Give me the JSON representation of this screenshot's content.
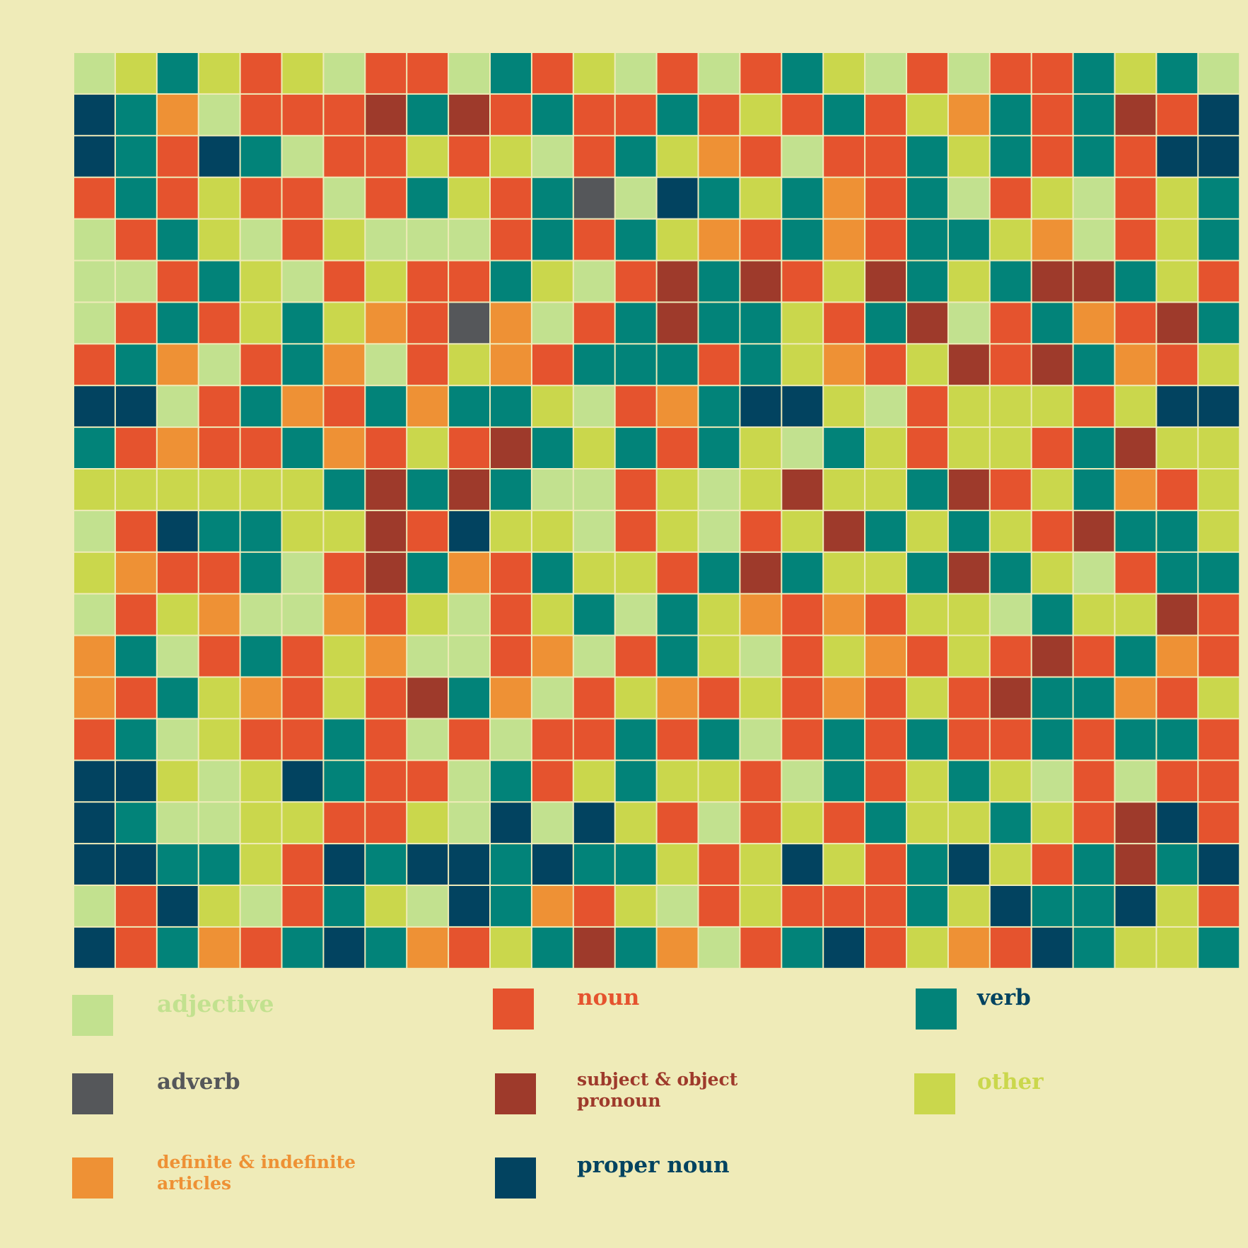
{
  "chart_data": {
    "type": "heatmap",
    "title": "",
    "background": "#efebb8",
    "grid_line_color": "#efebb8",
    "categories": [
      {
        "code": "A",
        "name": "adjective",
        "color": "#c2e18f"
      },
      {
        "code": "N",
        "name": "noun",
        "color": "#e5532e"
      },
      {
        "code": "V",
        "name": "verb",
        "color": "#028379"
      },
      {
        "code": "D",
        "name": "adverb",
        "color": "#55575a"
      },
      {
        "code": "S",
        "name": "subject & object\npronoun",
        "color": "#9e3a2b"
      },
      {
        "code": "O",
        "name": "other",
        "color": "#cad74c"
      },
      {
        "code": "R",
        "name": "definite & indefinite\narticles",
        "color": "#ee9135"
      },
      {
        "code": "P",
        "name": "proper noun",
        "color": "#024360"
      }
    ],
    "rows": [
      "AOVONOANNAVNOANANVOANANNVOVA",
      "PVRANNNSVSNVNNVNONVNORVNVSNP",
      "PVNPVANNONOANVORNANNVOVNVNPP",
      "NVNONNANVONVDAPVOVRNVANOANOV",
      "ANVOANOAAANVNVORNVRNVVORANOV",
      "AANVOANONNVOANSVSNOSVOVSSVON",
      "ANVNOVORNDRANVSVVONVSANVRNSV",
      "NVRANVRANORNVVVNVORNOSNSVRNO",
      "PPANVRNVRVVOANRVPPOANOOONOPP",
      "VNRNNVRNONSVOVNVOAVONOONVSOO",
      "OOOOOOVSVSVAANOAOSOOVSNOVRNO",
      "ANPVVOOSNPOOANOANOSVOVONSVVO",
      "ORNNVANSVRNVOONVSVOOVSVOANVV",
      "ANORAARNOANOVAVORNRNOOAVOOSN",
      "RVANVNORAANRANVOANORNONSNVRN",
      "RNVORNONSVRANORNONRNONSVVRNO",
      "NVAONNVNANANNVNVANVNVNNVNVVN",
      "PPOAOPVNNAVNOVOONAVNOVOANANN",
      "PVAAOONNOAPAPONANONVOOVONSPN",
      "PPVVONPVPPVPVVONOPONVPONVSVP",
      "ANPOANVOAPVRNOANONNNVOPVVPON",
      "PNVRNVPVRNOVSVRANVPNORNPVOOV"
    ]
  },
  "legend": [
    {
      "label": "adjective",
      "color": "#c2e18f",
      "text_color": "#c2e18f"
    },
    {
      "label": "noun",
      "color": "#e5532e",
      "text_color": "#e5532e"
    },
    {
      "label": "verb",
      "color": "#028379",
      "text_color": "#024360"
    },
    {
      "label": "adverb",
      "color": "#55575a",
      "text_color": "#55575a"
    },
    {
      "label": "subject & object\npronoun",
      "color": "#9e3a2b",
      "text_color": "#9e3a2b"
    },
    {
      "label": "other",
      "color": "#cad74c",
      "text_color": "#cad74c"
    },
    {
      "label": "definite & indefinite\narticles",
      "color": "#ee9135",
      "text_color": "#ee9135"
    },
    {
      "label": "proper noun",
      "color": "#024360",
      "text_color": "#024360"
    }
  ]
}
